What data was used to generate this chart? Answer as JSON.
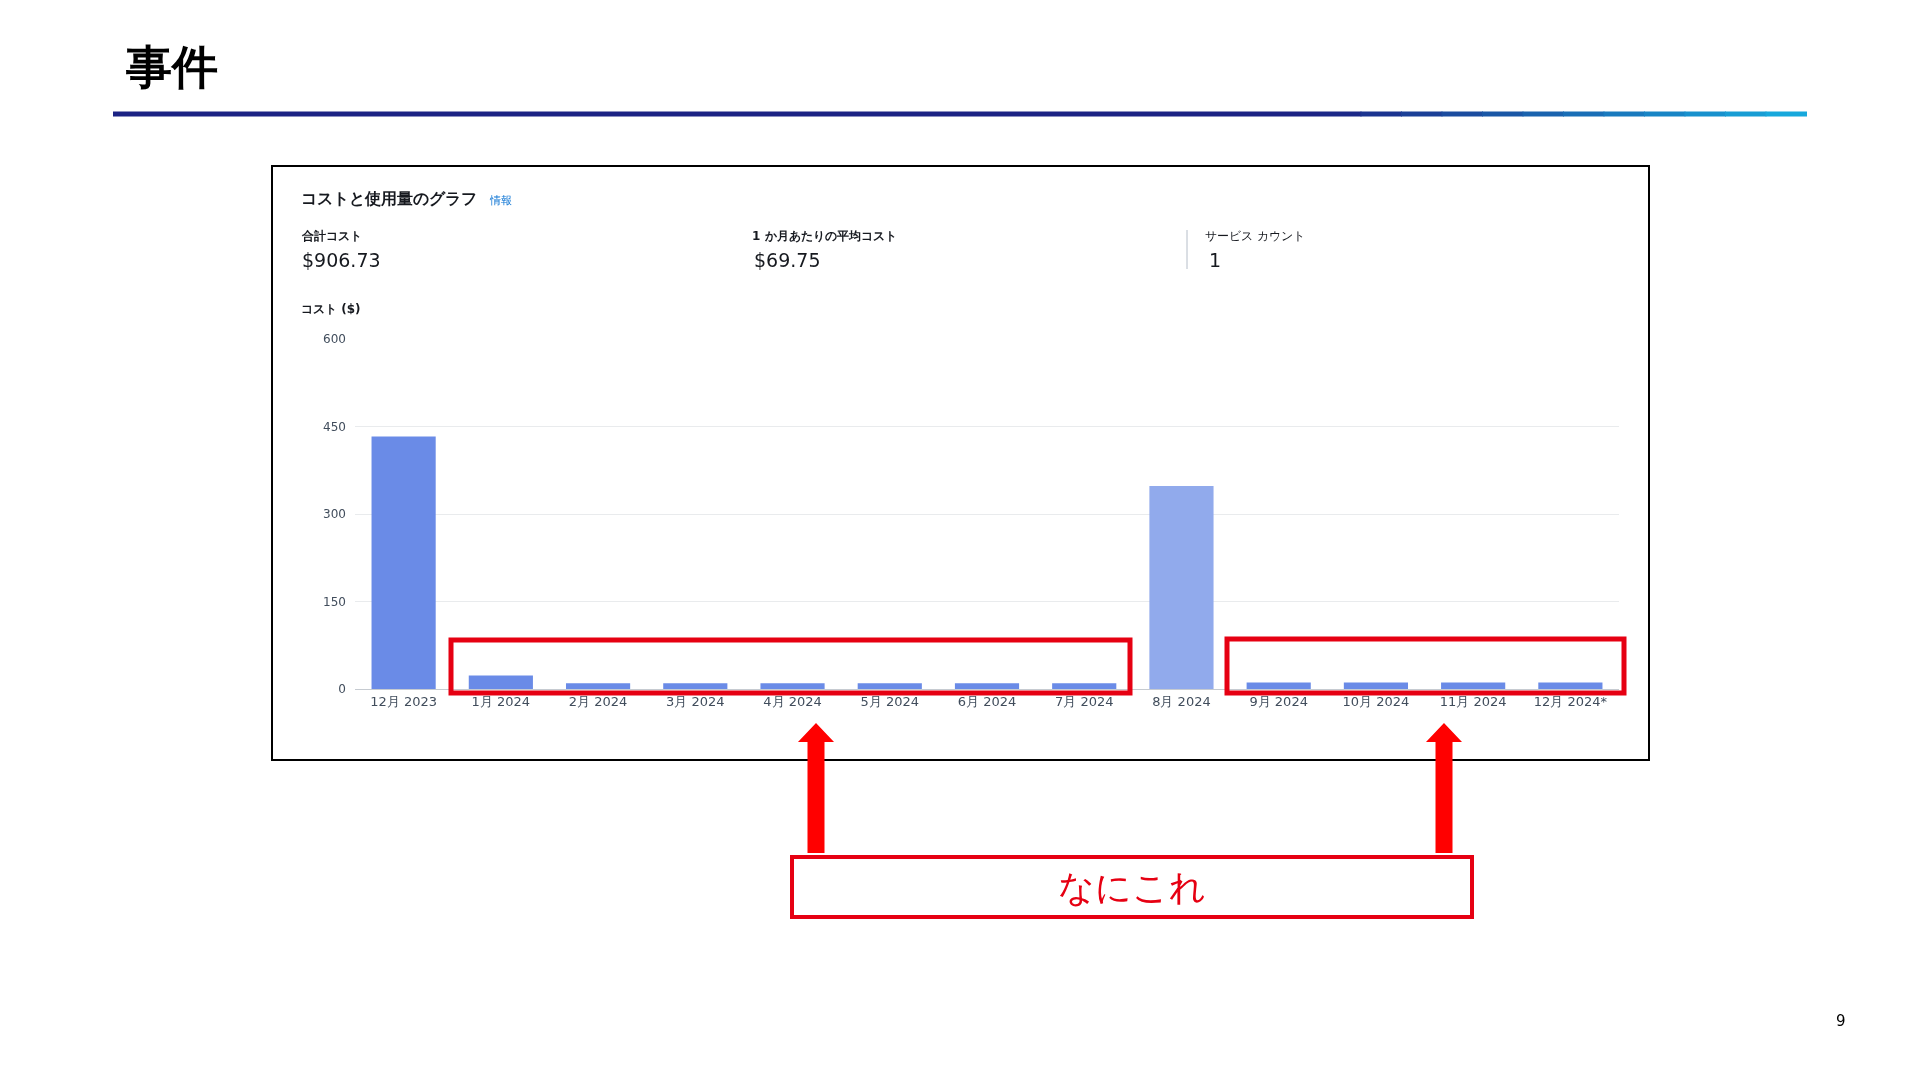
{
  "chart_data": {
    "type": "bar",
    "title": "事件",
    "subtitle": "コストと使用量のグラフ",
    "ylabel": "コスト ($)",
    "categories": [
      "12月 2023",
      "1月 2024",
      "2月 2024",
      "3月 2024",
      "4月 2024",
      "5月 2024",
      "6月 2024",
      "7月 2024",
      "8月 2024",
      "9月 2024",
      "10月 2024",
      "11月 2024",
      "12月 2024*"
    ],
    "values": [
      433,
      23,
      10,
      10,
      10,
      10,
      10,
      10,
      348,
      11,
      11,
      11,
      11
    ],
    "colors": [
      "#6a8be7",
      "#6a8be7",
      "#6a8be7",
      "#6a8be7",
      "#6a8be7",
      "#6a8be7",
      "#6a8be7",
      "#6a8be7",
      "#91aaec",
      "#6a8be7",
      "#6a8be7",
      "#6a8be7",
      "#6a8be7"
    ],
    "ylim": [
      0,
      600
    ],
    "yticks": [
      0,
      150,
      300,
      450,
      600
    ],
    "grid": "y",
    "annotations": [
      "情報",
      "合計コスト",
      "$906.73",
      "1 か月あたりの平均コスト",
      "$69.75",
      "サービス カウント",
      "1",
      "なにこれ",
      "9"
    ]
  }
}
